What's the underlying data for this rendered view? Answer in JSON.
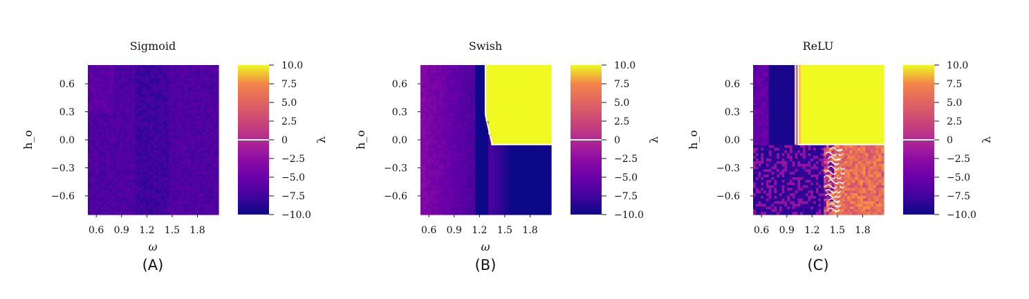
{
  "chart_data": [
    {
      "type": "heatmap",
      "title": "Sigmoid",
      "panel_label": "(A)",
      "xlabel": "ω",
      "ylabel": "h_o",
      "colorbar_label": "λ",
      "xlim": [
        0.5,
        2.05
      ],
      "ylim": [
        -0.8,
        0.8
      ],
      "xticks": [
        "0.6",
        "0.9",
        "1.2",
        "1.5",
        "1.8"
      ],
      "xtick_values": [
        0.6,
        0.9,
        1.2,
        1.5,
        1.8
      ],
      "yticks": [
        "0.6",
        "0.3",
        "0.0",
        "−0.3",
        "−0.6"
      ],
      "ytick_values": [
        0.6,
        0.3,
        0.0,
        -0.3,
        -0.6
      ],
      "colorbar_ticks": [
        "10.0",
        "7.5",
        "5.0",
        "2.5",
        "0",
        "−2.5",
        "−5.0",
        "−7.5",
        "−10.0"
      ],
      "colorbar_tick_values": [
        10,
        7.5,
        5,
        2.5,
        0,
        -2.5,
        -5,
        -7.5,
        -10
      ],
      "clim": [
        -10,
        10
      ],
      "colormap": "plasma",
      "regions": "lambda approx -6 to -8 everywhere (all negative)"
    },
    {
      "type": "heatmap",
      "title": "Swish",
      "panel_label": "(B)",
      "xlabel": "ω",
      "ylabel": "h_o",
      "colorbar_label": "λ",
      "xlim": [
        0.5,
        2.05
      ],
      "ylim": [
        -0.8,
        0.8
      ],
      "xticks": [
        "0.6",
        "0.9",
        "1.2",
        "1.5",
        "1.8"
      ],
      "xtick_values": [
        0.6,
        0.9,
        1.2,
        1.5,
        1.8
      ],
      "yticks": [
        "0.6",
        "0.3",
        "0.0",
        "−0.3",
        "−0.6"
      ],
      "yticks_values_note": "same as x",
      "ytick_values": [
        0.6,
        0.3,
        0.0,
        -0.3,
        -0.6
      ],
      "colorbar_ticks": [
        "10.0",
        "7.5",
        "5.0",
        "2.5",
        "0",
        "−2.5",
        "−5.0",
        "−7.5",
        "−10.0"
      ],
      "colorbar_tick_values": [
        10,
        7.5,
        5,
        2.5,
        0,
        -2.5,
        -5,
        -7.5,
        -10
      ],
      "clim": [
        -10,
        10
      ],
      "colormap": "plasma",
      "regions": "lambda = 10 for omega > ~1.28 and h_o > ~-0.05 (white zero contour on boundary); lambda ≈ -10 band at omega≈1.2-1.3 and for omega>1.6 below h_o=-0.05; lambda ≈ -4 near omega=0.5"
    },
    {
      "type": "heatmap",
      "title": "ReLU",
      "panel_label": "(C)",
      "xlabel": "ω",
      "ylabel": "h_o",
      "colorbar_label": "λ",
      "xlim": [
        0.5,
        2.05
      ],
      "ylim": [
        -0.8,
        0.8
      ],
      "xticks": [
        "0.6",
        "0.9",
        "1.2",
        "1.5",
        "1.8"
      ],
      "xtick_values": [
        0.6,
        0.9,
        1.2,
        1.5,
        1.8
      ],
      "yticks": [
        "0.6",
        "0.3",
        "0.0",
        "−0.3",
        "−0.6"
      ],
      "ytick_values": [
        0.6,
        0.3,
        0.0,
        -0.3,
        -0.6
      ],
      "colorbar_ticks": [
        "10.0",
        "7.5",
        "5.0",
        "2.5",
        "0",
        "−2.5",
        "−5.0",
        "−7.5",
        "−10.0"
      ],
      "colorbar_tick_values": [
        10,
        7.5,
        5,
        2.5,
        0,
        -2.5,
        -5,
        -7.5,
        -10
      ],
      "clim": [
        -10,
        10
      ],
      "colormap": "plasma",
      "regions": "lambda = 10 for omega > ~1.05 and h_o > ~-0.05; lambda ≈ -9 for omega 0.7-1.0 top half; noisy mixed region below h_o=-0.05 with positive lambda (~5) for omega > ~1.45 and zero contours near omega≈1.4-1.5"
    }
  ]
}
